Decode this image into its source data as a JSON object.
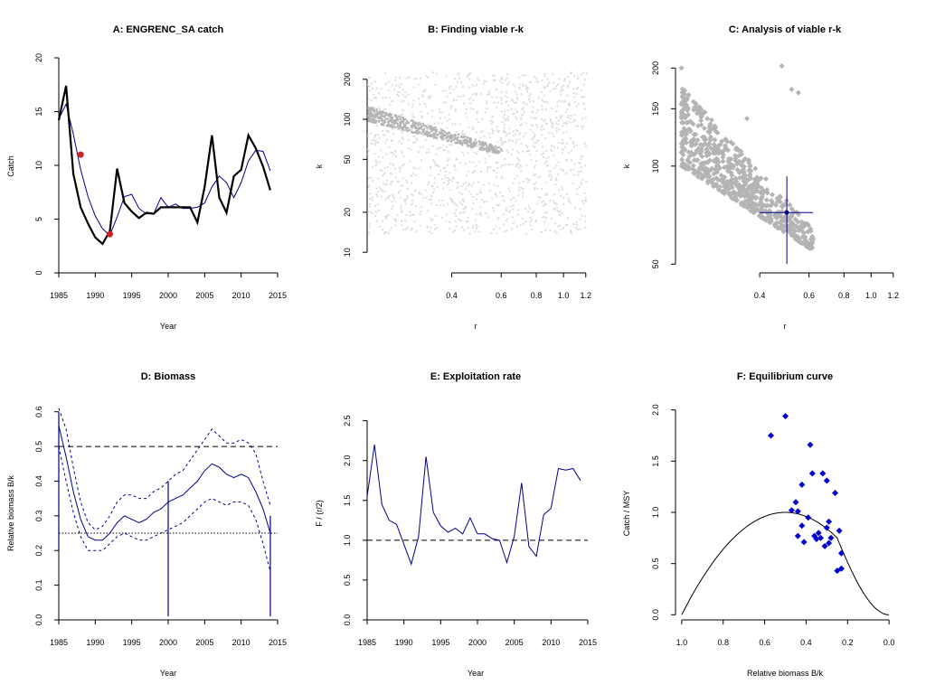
{
  "panels": {
    "A": {
      "title": "A:  ENGRENC_SA catch",
      "xlabel": "Year",
      "ylabel": "Catch",
      "xticks": [
        "1985",
        "1990",
        "1995",
        "2000",
        "2005",
        "2010",
        "2015"
      ],
      "yticks": [
        "0",
        "5",
        "10",
        "15",
        "20"
      ]
    },
    "B": {
      "title": "B: Finding viable r-k",
      "xlabel": "r",
      "ylabel": "k",
      "xticks": [
        "0.4",
        "0.6",
        "0.8",
        "1.0",
        "1.2"
      ],
      "yticks": [
        "10",
        "20",
        "50",
        "100",
        "200"
      ]
    },
    "C": {
      "title": "C: Analysis of viable r-k",
      "xlabel": "r",
      "ylabel": "k",
      "xticks": [
        "0.4",
        "0.6",
        "0.8",
        "1.0",
        "1.2"
      ],
      "yticks": [
        "50",
        "100",
        "150",
        "200"
      ]
    },
    "D": {
      "title": "D: Biomass",
      "xlabel": "Year",
      "ylabel": "Relative biomass B/k",
      "xticks": [
        "1985",
        "1990",
        "1995",
        "2000",
        "2005",
        "2010",
        "2015"
      ],
      "yticks": [
        "0.0",
        "0.1",
        "0.2",
        "0.3",
        "0.4",
        "0.5",
        "0.6"
      ]
    },
    "E": {
      "title": "E: Exploitation rate",
      "xlabel": "Year",
      "ylabel": "F / (r/2)",
      "xticks": [
        "1985",
        "1990",
        "1995",
        "2000",
        "2005",
        "2010",
        "2015"
      ],
      "yticks": [
        "0.0",
        "0.5",
        "1.0",
        "1.5",
        "2.0",
        "2.5"
      ]
    },
    "F": {
      "title": "F: Equilibrium curve",
      "xlabel": "Relative biomass B/k",
      "ylabel": "Catch / MSY",
      "xticks": [
        "1.0",
        "0.8",
        "0.6",
        "0.4",
        "0.2",
        "0.0"
      ],
      "yticks": [
        "0.0",
        "0.5",
        "1.0",
        "1.5",
        "2.0"
      ]
    }
  },
  "colors": {
    "catch": "#000000",
    "model": "#00008b",
    "marker": "#cc2222",
    "cloud": "#dedede",
    "viable": "#b4b4b4",
    "points": "#0000cd"
  },
  "chart_data": [
    {
      "panel": "A",
      "type": "line",
      "title": "A:  ENGRENC_SA catch",
      "xlabel": "Year",
      "ylabel": "Catch",
      "xlim": [
        1985,
        2015
      ],
      "ylim": [
        0,
        20
      ],
      "x": [
        1985,
        1986,
        1987,
        1988,
        1989,
        1990,
        1991,
        1992,
        1993,
        1994,
        1995,
        1996,
        1997,
        1998,
        1999,
        2000,
        2001,
        2002,
        2003,
        2004,
        2005,
        2006,
        2007,
        2008,
        2009,
        2010,
        2011,
        2012,
        2013,
        2014
      ],
      "series": [
        {
          "name": "",
          "values": [
            14.2,
            17.4,
            9.2,
            6.1,
            4.6,
            3.3,
            2.7,
            3.9,
            9.7,
            6.5,
            5.7,
            5.1,
            5.6,
            5.5,
            6.1,
            6.1,
            6.1,
            6.1,
            6.1,
            4.7,
            8.0,
            12.8,
            7.0,
            5.6,
            9.0,
            9.6,
            12.8,
            11.6,
            9.9,
            7.7
          ]
        },
        {
          "name": "",
          "values": [
            14.3,
            15.7,
            12.9,
            9.6,
            7.1,
            5.3,
            4.1,
            3.5,
            5.2,
            7.1,
            7.3,
            6.0,
            5.5,
            5.5,
            7.0,
            6.1,
            6.4,
            6.0,
            6.0,
            6.1,
            6.5,
            8.0,
            9.0,
            8.4,
            7.0,
            8.4,
            10.4,
            11.4,
            11.3,
            9.5
          ]
        }
      ],
      "markers": [
        {
          "x": 1988,
          "y": 11.0
        },
        {
          "x": 1992,
          "y": 3.6
        }
      ]
    },
    {
      "panel": "B",
      "type": "scatter",
      "xscale": "log",
      "yscale": "log",
      "title": "B: Finding viable r-k",
      "xlabel": "r",
      "ylabel": "k",
      "xlim": [
        0.2,
        1.22
      ],
      "ylim": [
        7,
        290
      ],
      "cloud": {
        "r": [
          0.2,
          1.2
        ],
        "k": [
          14,
          230
        ]
      },
      "viable_band": {
        "r": [
          0.2,
          0.6
        ],
        "k_upper": [
          127,
          62
        ],
        "k_lower": [
          98,
          55
        ]
      }
    },
    {
      "panel": "C",
      "type": "scatter",
      "xscale": "log",
      "yscale": "log",
      "title": "C: Analysis of viable r-k",
      "xlabel": "r",
      "ylabel": "k",
      "xlim": [
        0.2,
        1.22
      ],
      "ylim": [
        47,
        215
      ],
      "viable_band": {
        "r": [
          0.21,
          0.62
        ],
        "k_upper": [
          175,
          64
        ],
        "k_lower": [
          100,
          55
        ]
      },
      "outliers": [
        {
          "r": 0.21,
          "k": 200
        },
        {
          "r": 0.48,
          "k": 203
        },
        {
          "r": 0.52,
          "k": 172
        },
        {
          "r": 0.55,
          "k": 168
        },
        {
          "r": 0.36,
          "k": 140
        }
      ],
      "estimate": {
        "r": 0.5,
        "k": 72,
        "r_range": [
          0.4,
          0.62
        ],
        "k_range": [
          50,
          93
        ]
      }
    },
    {
      "panel": "D",
      "type": "line",
      "title": "D: Biomass",
      "xlabel": "Year",
      "ylabel": "Relative biomass B/k",
      "xlim": [
        1985,
        2015
      ],
      "ylim": [
        0,
        0.62
      ],
      "x": [
        1985,
        1986,
        1987,
        1988,
        1989,
        1990,
        1991,
        1992,
        1993,
        1994,
        1995,
        1996,
        1997,
        1998,
        1999,
        2000,
        2001,
        2002,
        2003,
        2004,
        2005,
        2006,
        2007,
        2008,
        2009,
        2010,
        2011,
        2012,
        2013,
        2014
      ],
      "series": [
        {
          "name": "",
          "values": [
            0.56,
            0.47,
            0.37,
            0.29,
            0.24,
            0.23,
            0.23,
            0.25,
            0.28,
            0.3,
            0.29,
            0.28,
            0.29,
            0.31,
            0.32,
            0.34,
            0.35,
            0.36,
            0.38,
            0.4,
            0.43,
            0.45,
            0.44,
            0.42,
            0.41,
            0.42,
            0.41,
            0.37,
            0.32,
            0.25
          ]
        },
        {
          "name": "",
          "values": [
            0.61,
            0.55,
            0.44,
            0.34,
            0.28,
            0.26,
            0.27,
            0.3,
            0.34,
            0.36,
            0.36,
            0.35,
            0.35,
            0.37,
            0.38,
            0.4,
            0.42,
            0.43,
            0.46,
            0.49,
            0.52,
            0.55,
            0.53,
            0.51,
            0.51,
            0.52,
            0.51,
            0.48,
            0.4,
            0.33
          ]
        },
        {
          "name": "",
          "values": [
            0.5,
            0.4,
            0.31,
            0.24,
            0.2,
            0.2,
            0.2,
            0.22,
            0.24,
            0.25,
            0.24,
            0.23,
            0.23,
            0.24,
            0.25,
            0.26,
            0.27,
            0.28,
            0.3,
            0.32,
            0.34,
            0.35,
            0.34,
            0.33,
            0.34,
            0.34,
            0.33,
            0.29,
            0.22,
            0.14
          ]
        }
      ],
      "hlines": [
        0.5,
        0.25
      ],
      "vlines": [
        {
          "x": 1985,
          "y": [
            0.2,
            0.6
          ]
        },
        {
          "x": 2000,
          "y": [
            0.01,
            0.4
          ]
        },
        {
          "x": 2014,
          "y": [
            0.01,
            0.3
          ]
        }
      ]
    },
    {
      "panel": "E",
      "type": "line",
      "title": "E: Exploitation rate",
      "xlabel": "Year",
      "ylabel": "F / (r/2)",
      "xlim": [
        1985,
        2015
      ],
      "ylim": [
        0,
        2.7
      ],
      "x": [
        1985,
        1986,
        1987,
        1988,
        1989,
        1990,
        1991,
        1992,
        1993,
        1994,
        1995,
        1996,
        1997,
        1998,
        1999,
        2000,
        2001,
        2002,
        2003,
        2004,
        2005,
        2006,
        2007,
        2008,
        2009,
        2010,
        2011,
        2012,
        2013,
        2014
      ],
      "series": [
        {
          "name": "",
          "values": [
            1.55,
            2.2,
            1.45,
            1.25,
            1.2,
            0.95,
            0.7,
            1.05,
            2.05,
            1.35,
            1.18,
            1.1,
            1.15,
            1.08,
            1.28,
            1.08,
            1.08,
            1.02,
            1.0,
            0.72,
            1.05,
            1.72,
            0.92,
            0.8,
            1.32,
            1.4,
            1.9,
            1.88,
            1.9,
            1.75
          ]
        }
      ],
      "hline": 1.0
    },
    {
      "panel": "F",
      "type": "scatter",
      "title": "F: Equilibrium curve",
      "xlabel": "Relative biomass B/k",
      "ylabel": "Catch / MSY",
      "xlim": [
        1.03,
        -0.03
      ],
      "ylim": [
        -0.05,
        2.05
      ],
      "curve": "4*b*(1-b) for b >= 0.25, linearly reduced below 0.25",
      "points": [
        {
          "x": 0.57,
          "y": 1.75
        },
        {
          "x": 0.5,
          "y": 1.94
        },
        {
          "x": 0.47,
          "y": 1.02
        },
        {
          "x": 0.45,
          "y": 1.1
        },
        {
          "x": 0.44,
          "y": 1.01
        },
        {
          "x": 0.44,
          "y": 0.77
        },
        {
          "x": 0.42,
          "y": 0.87
        },
        {
          "x": 0.42,
          "y": 1.27
        },
        {
          "x": 0.41,
          "y": 0.71
        },
        {
          "x": 0.39,
          "y": 0.95
        },
        {
          "x": 0.38,
          "y": 1.66
        },
        {
          "x": 0.37,
          "y": 1.38
        },
        {
          "x": 0.36,
          "y": 0.77
        },
        {
          "x": 0.35,
          "y": 0.74
        },
        {
          "x": 0.34,
          "y": 0.8
        },
        {
          "x": 0.33,
          "y": 0.75
        },
        {
          "x": 0.32,
          "y": 1.38
        },
        {
          "x": 0.31,
          "y": 0.67
        },
        {
          "x": 0.3,
          "y": 1.31
        },
        {
          "x": 0.3,
          "y": 0.85
        },
        {
          "x": 0.29,
          "y": 0.91
        },
        {
          "x": 0.29,
          "y": 0.7
        },
        {
          "x": 0.28,
          "y": 0.75
        },
        {
          "x": 0.26,
          "y": 1.19
        },
        {
          "x": 0.25,
          "y": 0.43
        },
        {
          "x": 0.24,
          "y": 0.82
        },
        {
          "x": 0.23,
          "y": 0.6
        },
        {
          "x": 0.23,
          "y": 0.45
        }
      ]
    }
  ]
}
